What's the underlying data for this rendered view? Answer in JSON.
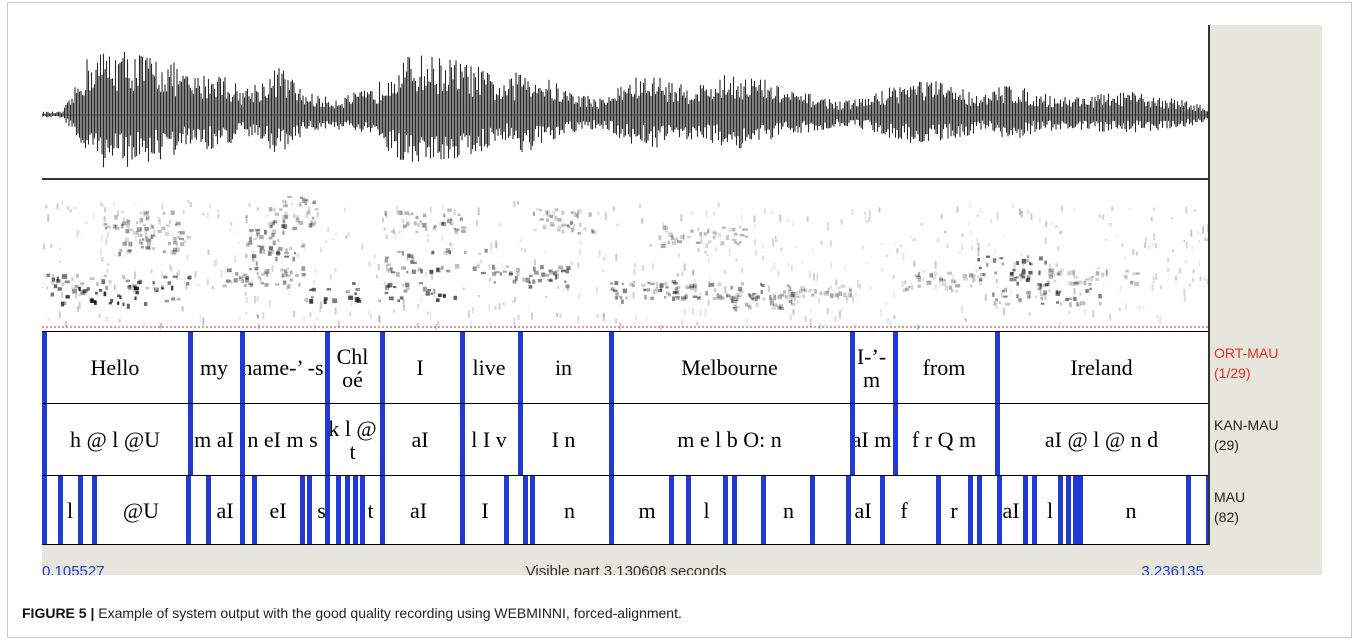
{
  "tiers": {
    "ort": {
      "name": "ORT-MAU",
      "count": "(1/29)",
      "color": "#e0322a",
      "segments": [
        "Hello",
        "my",
        "name-’ -s",
        "Chl oé",
        "I",
        "live",
        "in",
        "Melbourne",
        "I-’- m",
        "from",
        "Ireland"
      ]
    },
    "kan": {
      "name": "KAN-MAU",
      "count": "(29)",
      "color": "#222222",
      "segments": [
        "h @ l @U",
        "m aI",
        "n eI m s",
        "k l @ t",
        "aI",
        "l I v",
        "I n",
        "m e l b O: n",
        "aI m",
        "f r Q m",
        "aI @ l @ n d"
      ]
    },
    "mau": {
      "name": "MAU",
      "count": "(82)",
      "color": "#222222",
      "segments": [
        "l",
        "@U",
        "aI",
        "eI",
        "s",
        "t",
        "aI",
        "I",
        "n",
        "m",
        "l",
        "n",
        "aI",
        "f",
        "r",
        "aI",
        "l",
        "n"
      ]
    }
  },
  "status": {
    "start": "0.105527",
    "label": "Visible part 3.130608 seconds",
    "end": "3.236135"
  },
  "caption": {
    "label": "FIGURE 5 |",
    "text": "Example of system output with the good quality recording using WEBMINNI, forced-alignment."
  },
  "colors": {
    "boundary": "#1f3ad8",
    "panel_gray": "#e6e6dc",
    "waveform": "#2a2a2a",
    "cursor_line": "#d03030"
  }
}
